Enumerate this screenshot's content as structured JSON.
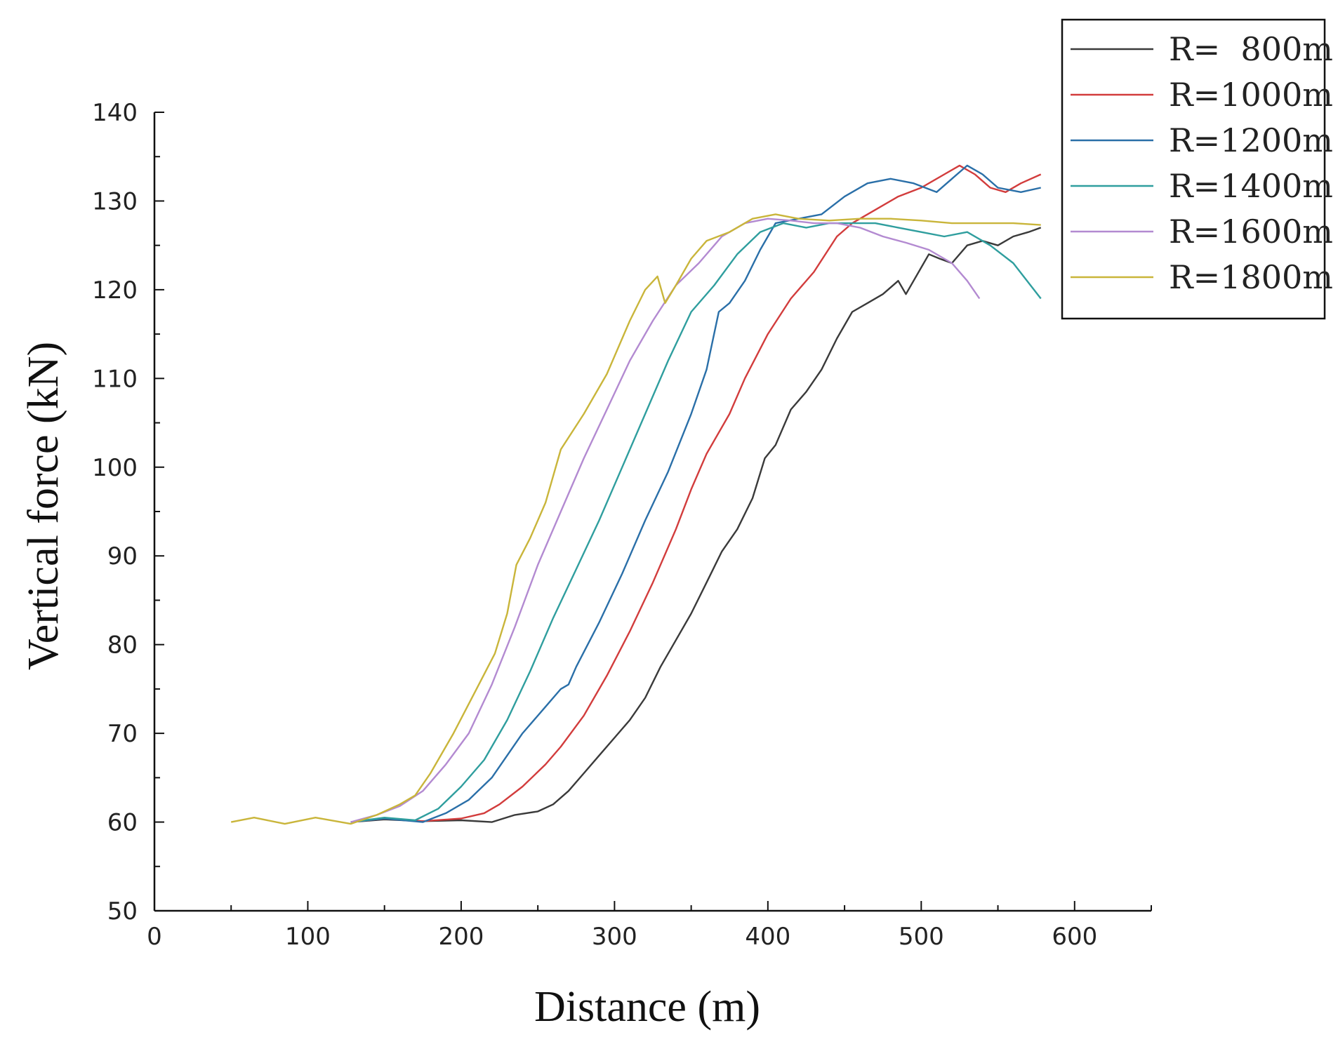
{
  "chart_data": {
    "type": "line",
    "xlabel": "Distance (m)",
    "ylabel": "Vertical force (kN)",
    "xlim": [
      0,
      650
    ],
    "ylim": [
      50,
      140
    ],
    "xticks": [
      0,
      100,
      200,
      300,
      400,
      500,
      600
    ],
    "yticks": [
      50,
      60,
      70,
      80,
      90,
      100,
      110,
      120,
      130,
      140
    ],
    "grid": false,
    "legend_position": "top-right",
    "series": [
      {
        "name": "R=  800m",
        "color": "#3a3a3a",
        "points": [
          [
            128,
            60
          ],
          [
            150,
            60.3
          ],
          [
            175,
            60.1
          ],
          [
            200,
            60.2
          ],
          [
            220,
            60
          ],
          [
            235,
            60.8
          ],
          [
            250,
            61.2
          ],
          [
            260,
            62
          ],
          [
            270,
            63.5
          ],
          [
            280,
            65.5
          ],
          [
            290,
            67.5
          ],
          [
            300,
            69.5
          ],
          [
            310,
            71.5
          ],
          [
            320,
            74
          ],
          [
            330,
            77.5
          ],
          [
            340,
            80.5
          ],
          [
            350,
            83.5
          ],
          [
            360,
            87
          ],
          [
            370,
            90.5
          ],
          [
            380,
            93
          ],
          [
            390,
            96.5
          ],
          [
            398,
            101
          ],
          [
            405,
            102.5
          ],
          [
            415,
            106.5
          ],
          [
            425,
            108.5
          ],
          [
            435,
            111
          ],
          [
            445,
            114.5
          ],
          [
            455,
            117.5
          ],
          [
            465,
            118.5
          ],
          [
            475,
            119.5
          ],
          [
            485,
            121
          ],
          [
            490,
            119.5
          ],
          [
            495,
            121
          ],
          [
            505,
            124
          ],
          [
            512,
            123.5
          ],
          [
            520,
            123
          ],
          [
            530,
            125
          ],
          [
            540,
            125.5
          ],
          [
            550,
            125
          ],
          [
            560,
            126
          ],
          [
            570,
            126.5
          ],
          [
            578,
            127
          ]
        ]
      },
      {
        "name": "R=1000m",
        "color": "#d23c3c",
        "points": [
          [
            128,
            60
          ],
          [
            150,
            60.4
          ],
          [
            175,
            60.1
          ],
          [
            200,
            60.4
          ],
          [
            215,
            61
          ],
          [
            225,
            62
          ],
          [
            240,
            64
          ],
          [
            255,
            66.5
          ],
          [
            265,
            68.5
          ],
          [
            280,
            72
          ],
          [
            295,
            76.5
          ],
          [
            310,
            81.5
          ],
          [
            325,
            87
          ],
          [
            340,
            93
          ],
          [
            350,
            97.5
          ],
          [
            360,
            101.5
          ],
          [
            375,
            106
          ],
          [
            385,
            110
          ],
          [
            400,
            115
          ],
          [
            415,
            119
          ],
          [
            430,
            122
          ],
          [
            445,
            126
          ],
          [
            455,
            127.5
          ],
          [
            470,
            129
          ],
          [
            485,
            130.5
          ],
          [
            500,
            131.5
          ],
          [
            515,
            133
          ],
          [
            525,
            134
          ],
          [
            535,
            133
          ],
          [
            545,
            131.5
          ],
          [
            555,
            131
          ],
          [
            565,
            132
          ],
          [
            578,
            133
          ]
        ]
      },
      {
        "name": "R=1200m",
        "color": "#2a6fa8",
        "points": [
          [
            128,
            60
          ],
          [
            150,
            60.4
          ],
          [
            175,
            60
          ],
          [
            190,
            61
          ],
          [
            205,
            62.5
          ],
          [
            220,
            65
          ],
          [
            240,
            70
          ],
          [
            255,
            73
          ],
          [
            265,
            75
          ],
          [
            270,
            75.5
          ],
          [
            275,
            77.5
          ],
          [
            290,
            82.5
          ],
          [
            305,
            88
          ],
          [
            320,
            94
          ],
          [
            335,
            99.5
          ],
          [
            350,
            106
          ],
          [
            360,
            111
          ],
          [
            368,
            117.5
          ],
          [
            375,
            118.5
          ],
          [
            385,
            121
          ],
          [
            395,
            124.5
          ],
          [
            405,
            127.5
          ],
          [
            420,
            128
          ],
          [
            435,
            128.5
          ],
          [
            450,
            130.5
          ],
          [
            465,
            132
          ],
          [
            480,
            132.5
          ],
          [
            495,
            132
          ],
          [
            510,
            131
          ],
          [
            520,
            132.5
          ],
          [
            530,
            134
          ],
          [
            540,
            133
          ],
          [
            550,
            131.5
          ],
          [
            565,
            131
          ],
          [
            578,
            131.5
          ]
        ]
      },
      {
        "name": "R=1400m",
        "color": "#2f9e9e",
        "points": [
          [
            128,
            60
          ],
          [
            150,
            60.5
          ],
          [
            170,
            60.2
          ],
          [
            185,
            61.5
          ],
          [
            200,
            64
          ],
          [
            215,
            67
          ],
          [
            230,
            71.5
          ],
          [
            245,
            77
          ],
          [
            260,
            83
          ],
          [
            275,
            88.5
          ],
          [
            290,
            94
          ],
          [
            305,
            100
          ],
          [
            320,
            106
          ],
          [
            335,
            112
          ],
          [
            350,
            117.5
          ],
          [
            365,
            120.5
          ],
          [
            380,
            124
          ],
          [
            395,
            126.5
          ],
          [
            410,
            127.5
          ],
          [
            425,
            127
          ],
          [
            440,
            127.5
          ],
          [
            455,
            127.5
          ],
          [
            470,
            127.5
          ],
          [
            485,
            127
          ],
          [
            500,
            126.5
          ],
          [
            515,
            126
          ],
          [
            530,
            126.5
          ],
          [
            545,
            125
          ],
          [
            560,
            123
          ],
          [
            578,
            119
          ]
        ]
      },
      {
        "name": "R=1600m",
        "color": "#b38ad1",
        "points": [
          [
            128,
            60
          ],
          [
            145,
            60.8
          ],
          [
            160,
            61.8
          ],
          [
            175,
            63.5
          ],
          [
            190,
            66.5
          ],
          [
            205,
            70
          ],
          [
            220,
            75.5
          ],
          [
            235,
            82
          ],
          [
            250,
            89
          ],
          [
            265,
            95
          ],
          [
            280,
            101
          ],
          [
            295,
            106.5
          ],
          [
            310,
            112
          ],
          [
            325,
            116.5
          ],
          [
            340,
            120.5
          ],
          [
            355,
            123
          ],
          [
            370,
            126
          ],
          [
            385,
            127.5
          ],
          [
            400,
            128
          ],
          [
            415,
            127.8
          ],
          [
            430,
            127.5
          ],
          [
            445,
            127.5
          ],
          [
            460,
            127
          ],
          [
            475,
            126
          ],
          [
            490,
            125.3
          ],
          [
            505,
            124.5
          ],
          [
            520,
            123
          ],
          [
            530,
            121
          ],
          [
            538,
            119
          ]
        ]
      },
      {
        "name": "R=1800m",
        "color": "#c9b53a",
        "points": [
          [
            50,
            60
          ],
          [
            65,
            60.5
          ],
          [
            85,
            59.8
          ],
          [
            105,
            60.5
          ],
          [
            128,
            59.8
          ],
          [
            145,
            60.8
          ],
          [
            160,
            62
          ],
          [
            170,
            63
          ],
          [
            180,
            65.5
          ],
          [
            195,
            70
          ],
          [
            210,
            75
          ],
          [
            222,
            79
          ],
          [
            230,
            83.5
          ],
          [
            236,
            89
          ],
          [
            245,
            92
          ],
          [
            255,
            96
          ],
          [
            265,
            102
          ],
          [
            280,
            106
          ],
          [
            295,
            110.5
          ],
          [
            310,
            116.5
          ],
          [
            320,
            120
          ],
          [
            328,
            121.5
          ],
          [
            333,
            118.5
          ],
          [
            340,
            120.5
          ],
          [
            350,
            123.5
          ],
          [
            360,
            125.5
          ],
          [
            375,
            126.5
          ],
          [
            390,
            128
          ],
          [
            405,
            128.5
          ],
          [
            420,
            128
          ],
          [
            440,
            127.8
          ],
          [
            460,
            128
          ],
          [
            480,
            128
          ],
          [
            500,
            127.8
          ],
          [
            520,
            127.5
          ],
          [
            540,
            127.5
          ],
          [
            560,
            127.5
          ],
          [
            578,
            127.3
          ]
        ]
      }
    ]
  }
}
